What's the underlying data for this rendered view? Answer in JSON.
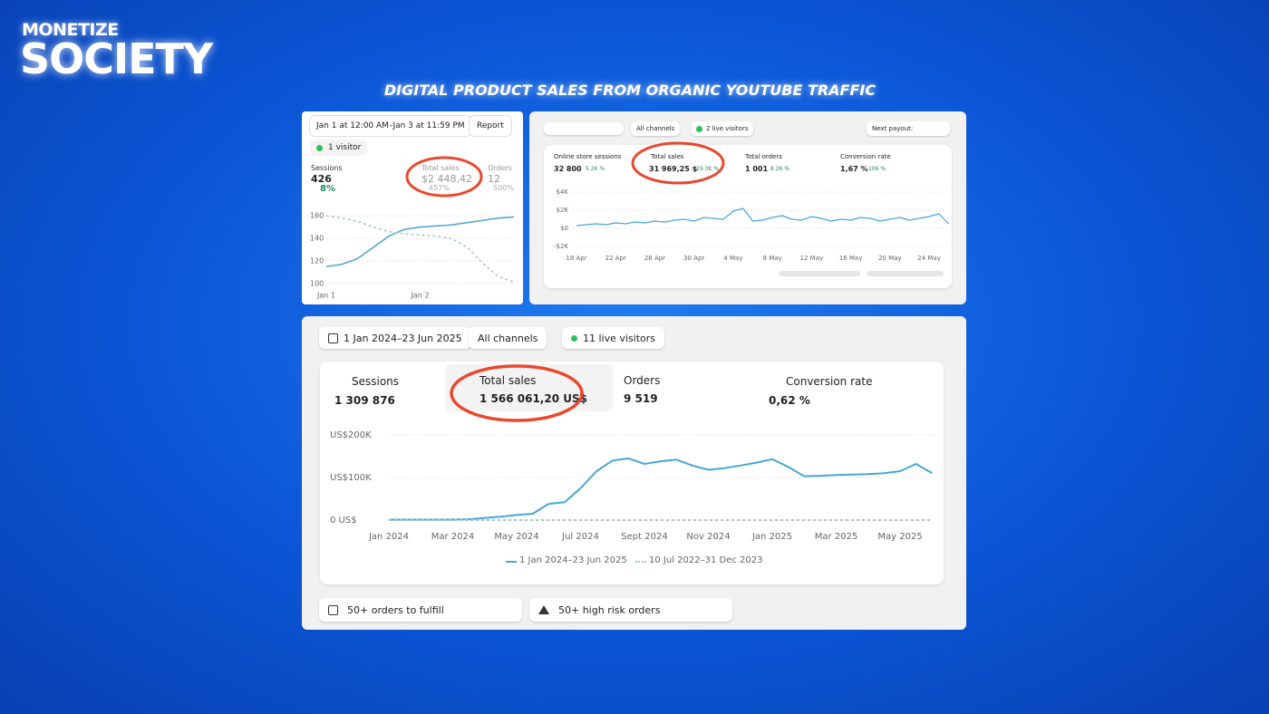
{
  "brand": {
    "top": "MONETIZE",
    "bottom": "SOCIETY"
  },
  "headline": "DIGITAL PRODUCT SALES FROM ORGANIC YOUTUBE TRAFFIC",
  "panel1": {
    "date_range": "Jan 1 at 12:00 AM–Jan 3 at 11:59 PM",
    "report": "Report",
    "visitors": "1 visitor",
    "metrics": [
      {
        "label": "Sessions",
        "value": "426",
        "change": "8%"
      },
      {
        "label": "Total sales",
        "value": "$2 448,42",
        "change": "457%"
      },
      {
        "label": "Orders",
        "value": "12",
        "change": "500%"
      }
    ],
    "chart": {
      "type": "line",
      "categories": [
        "Jan 1",
        null,
        null,
        null,
        null,
        null,
        "Jan 2",
        null,
        null,
        null,
        null,
        null,
        null
      ],
      "series": [
        {
          "color": "#4fa3c9",
          "values": [
            115,
            117,
            122,
            132,
            142,
            148,
            150,
            151,
            152,
            154,
            156,
            158,
            159
          ]
        },
        {
          "color": "#a9c4cf",
          "dashed": true,
          "values": [
            160,
            158,
            155,
            150,
            146,
            144,
            143,
            142,
            140,
            132,
            118,
            106,
            101
          ]
        }
      ],
      "ylim": [
        95,
        165
      ],
      "yticks": [
        100,
        120,
        140,
        160
      ],
      "grid": true
    }
  },
  "panel2": {
    "channels": "All channels",
    "visitors": "2 live visitors",
    "payout": "Next payout:",
    "metrics": [
      {
        "label": "Online store sessions",
        "value": "32 800",
        "change": "5.2K %"
      },
      {
        "label": "Total sales",
        "value": "31 969,25 $",
        "change": "29.3K %"
      },
      {
        "label": "Total orders",
        "value": "1 001",
        "change": "8.2K %"
      },
      {
        "label": "Conversion rate",
        "value": "1,67 %",
        "change": "106 %"
      }
    ],
    "chart": {
      "type": "line",
      "categories": [
        "18 Apr",
        null,
        null,
        null,
        "22 Apr",
        null,
        null,
        null,
        "26 Apr",
        null,
        null,
        null,
        "30 Apr",
        null,
        null,
        null,
        "4 May",
        null,
        null,
        null,
        "8 May",
        null,
        null,
        null,
        "12 May",
        null,
        null,
        null,
        "16 May",
        null,
        null,
        null,
        "20 May",
        null,
        null,
        null,
        "24 May",
        null,
        null
      ],
      "series": [
        {
          "color": "#45a8d6",
          "values": [
            300,
            400,
            500,
            400,
            600,
            500,
            700,
            600,
            800,
            700,
            900,
            1000,
            800,
            1200,
            1100,
            1000,
            1900,
            2200,
            800,
            900,
            1200,
            1400,
            1000,
            900,
            1300,
            1100,
            800,
            1000,
            900,
            1200,
            1100,
            800,
            1000,
            1200,
            900,
            1100,
            1300,
            1600,
            500
          ]
        }
      ],
      "ylim": [
        -2500,
        4500
      ],
      "yticks": [
        {
          "value": 4000,
          "label": "$4K"
        },
        {
          "value": 2000,
          "label": "$2K"
        },
        {
          "value": 0,
          "label": "$0"
        },
        {
          "value": -2000,
          "label": "-$2K"
        }
      ],
      "grid": true
    }
  },
  "panel3": {
    "date_range": "1 Jan 2024–23 Jun 2025",
    "channels": "All channels",
    "visitors": "11 live visitors",
    "metrics": [
      {
        "label": "Sessions",
        "value": "1 309 876"
      },
      {
        "label": "Total sales",
        "value": "1 566 061,20 US$"
      },
      {
        "label": "Orders",
        "value": "9 519"
      },
      {
        "label": "Conversion rate",
        "value": "0,62 %"
      }
    ],
    "chart": {
      "type": "line",
      "categories": [
        "Jan 2024",
        null,
        null,
        null,
        "Mar 2024",
        null,
        null,
        null,
        "May 2024",
        null,
        null,
        null,
        "Jul 2024",
        null,
        null,
        null,
        "Sept 2024",
        null,
        null,
        null,
        "Nov 2024",
        null,
        null,
        null,
        "Jan 2025",
        null,
        null,
        null,
        "Mar 2025",
        null,
        null,
        null,
        "May 2025",
        null,
        null
      ],
      "series": [
        {
          "name": "1 Jan 2024–23 Jun 2025",
          "color": "#45a8d6",
          "values": [
            1000,
            1000,
            1000,
            1000,
            1000,
            2000,
            5000,
            8000,
            12000,
            15000,
            38000,
            42000,
            75000,
            115000,
            140000,
            145000,
            132000,
            138000,
            142000,
            128000,
            118000,
            122000,
            128000,
            135000,
            143000,
            125000,
            103000,
            104000,
            106000,
            107000,
            108000,
            110000,
            115000,
            132000,
            110000
          ]
        },
        {
          "name": "10 Jul 2022–31 Dec 2023",
          "color": "#a9c4cf",
          "dashed": true,
          "values": [
            0,
            0,
            0,
            0,
            0,
            0,
            0,
            0,
            0,
            0,
            0,
            0,
            0,
            0,
            0,
            0,
            0,
            0,
            0,
            0,
            0,
            0,
            0,
            0,
            0,
            0,
            0,
            0,
            0,
            0,
            0,
            0,
            0,
            0,
            0
          ]
        }
      ],
      "ylim": [
        0,
        210000
      ],
      "yticks": [
        {
          "value": 200000,
          "label": "US$200K"
        },
        {
          "value": 100000,
          "label": "US$100K"
        },
        {
          "value": 0,
          "label": "0 US$"
        }
      ],
      "grid": true
    },
    "tasks": [
      "50+ orders to fulfill",
      "50+ high risk orders"
    ]
  }
}
